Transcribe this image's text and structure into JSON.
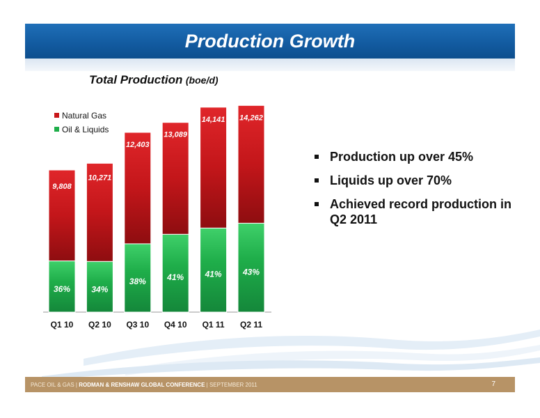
{
  "header": {
    "title": "Production Growth"
  },
  "chart_title": {
    "main": "Total Production",
    "unit": "(boe/d)"
  },
  "bullets": [
    "Production up over 45%",
    "Liquids up over 70%",
    "Achieved record production in Q2 2011"
  ],
  "footer": {
    "company": "PACE OIL & GAS",
    "separator1": "|",
    "conference": "RODMAN & RENSHAW GLOBAL CONFERENCE",
    "separator2": "|",
    "date": "SEPTEMBER 2011",
    "page_number": "7"
  },
  "colors": {
    "title_bar": "#125a9f",
    "natural_gas": "#c8171a",
    "oil_liquids": "#1fae4a",
    "footer": "#b79366"
  },
  "chart_data": {
    "type": "bar",
    "stacked": true,
    "categories": [
      "Q1 10",
      "Q2 10",
      "Q3 10",
      "Q4 10",
      "Q1 11",
      "Q2 11"
    ],
    "totals": [
      9808,
      10271,
      12403,
      13089,
      14141,
      14262
    ],
    "total_labels": [
      "9,808",
      "10,271",
      "12,403",
      "13,089",
      "14,141",
      "14,262"
    ],
    "liquids_share_pct": [
      36,
      34,
      38,
      41,
      41,
      43
    ],
    "liquids_share_labels": [
      "36%",
      "34%",
      "38%",
      "41%",
      "41%",
      "43%"
    ],
    "series": [
      {
        "name": "Natural Gas",
        "color": "#c8171a"
      },
      {
        "name": "Oil & Liquids",
        "color": "#1fae4a"
      }
    ],
    "legend_position": "top-left",
    "title": "Total Production",
    "ylabel": "boe/d",
    "grid": false,
    "ylim": [
      0,
      14500
    ]
  }
}
